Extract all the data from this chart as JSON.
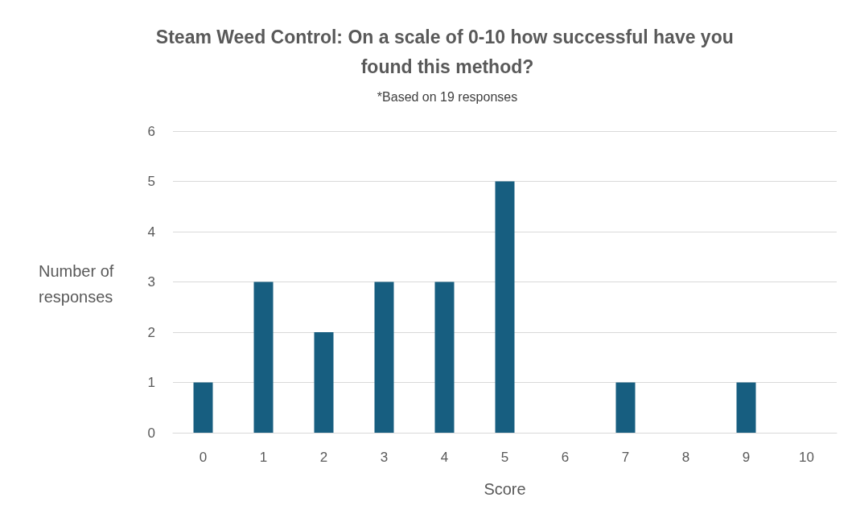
{
  "chart_data": {
    "type": "bar",
    "title": "Steam Weed Control: On a scale of 0-10 how successful have you found this method?",
    "subtitle": "*Based on 19 responses",
    "xlabel": "Score",
    "ylabel": "Number of responses",
    "categories": [
      "0",
      "1",
      "2",
      "3",
      "4",
      "5",
      "6",
      "7",
      "8",
      "9",
      "10"
    ],
    "values": [
      1,
      3,
      2,
      3,
      3,
      5,
      0,
      1,
      0,
      1,
      0
    ],
    "color": "#175e80",
    "ylim": [
      0,
      6
    ],
    "yticks": [
      0,
      1,
      2,
      3,
      4,
      5,
      6
    ],
    "grid": "y"
  }
}
